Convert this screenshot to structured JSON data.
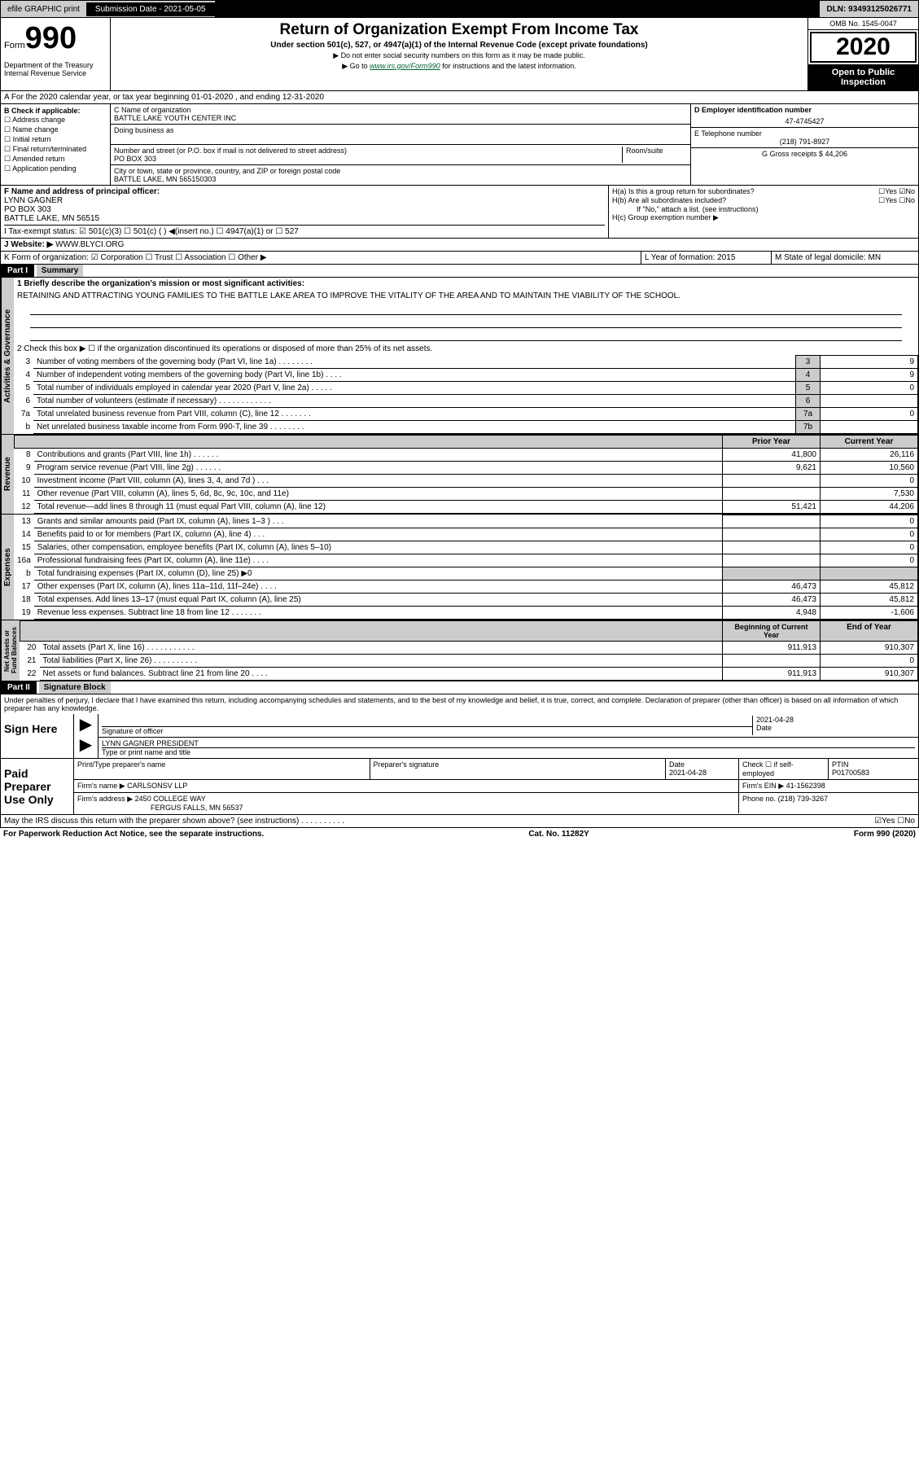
{
  "topbar": {
    "efile": "efile GRAPHIC print",
    "sub_label": "Submission Date - 2021-05-05",
    "dln": "DLN: 93493125026771"
  },
  "header": {
    "form_word": "Form",
    "form_num": "990",
    "dept": "Department of the Treasury\nInternal Revenue Service",
    "title": "Return of Organization Exempt From Income Tax",
    "subtitle": "Under section 501(c), 527, or 4947(a)(1) of the Internal Revenue Code (except private foundations)",
    "note1": "▶ Do not enter social security numbers on this form as it may be made public.",
    "note2_pre": "▶ Go to ",
    "note2_link": "www.irs.gov/Form990",
    "note2_post": " for instructions and the latest information.",
    "omb": "OMB No. 1545-0047",
    "year": "2020",
    "inspect": "Open to Public Inspection"
  },
  "line_a": "A For the 2020 calendar year, or tax year beginning 01-01-2020   , and ending 12-31-2020",
  "box_b": {
    "label": "B Check if applicable:",
    "items": [
      "☐ Address change",
      "☐ Name change",
      "☐ Initial return",
      "☐ Final return/terminated",
      "☐ Amended return",
      "☐ Application pending"
    ]
  },
  "box_c": {
    "name_label": "C Name of organization",
    "name": "BATTLE LAKE YOUTH CENTER INC",
    "dba_label": "Doing business as",
    "addr_label": "Number and street (or P.O. box if mail is not delivered to street address)",
    "room_label": "Room/suite",
    "addr": "PO BOX 303",
    "city_label": "City or town, state or province, country, and ZIP or foreign postal code",
    "city": "BATTLE LAKE, MN  565150303"
  },
  "box_d": {
    "label": "D Employer identification number",
    "value": "47-4745427"
  },
  "box_e": {
    "label": "E Telephone number",
    "value": "(218) 791-8927"
  },
  "box_g": {
    "label": "G Gross receipts $ 44,206"
  },
  "box_f": {
    "label": "F Name and address of principal officer:",
    "name": "LYNN GAGNER",
    "addr1": "PO BOX 303",
    "addr2": "BATTLE LAKE, MN  56515"
  },
  "box_h": {
    "a": "H(a)  Is this a group return for subordinates?",
    "a_ans": "☐Yes ☑No",
    "b": "H(b)  Are all subordinates included?",
    "b_ans": "☐Yes ☐No",
    "b_note": "If \"No,\" attach a list. (see instructions)",
    "c": "H(c)  Group exemption number ▶"
  },
  "box_i": "I  Tax-exempt status:   ☑ 501(c)(3)   ☐ 501(c) (  ) ◀(insert no.)   ☐ 4947(a)(1) or   ☐ 527",
  "box_j_label": "J  Website: ▶",
  "box_j_val": "WWW.BLYCI.ORG",
  "box_k": "K Form of organization:  ☑ Corporation  ☐ Trust  ☐ Association  ☐ Other ▶",
  "box_l": "L Year of formation: 2015",
  "box_m": "M State of legal domicile: MN",
  "part1": {
    "hdr": "Part I",
    "title": "Summary",
    "q1": "1  Briefly describe the organization's mission or most significant activities:",
    "mission": "RETAINING AND ATTRACTING YOUNG FAMILIES TO THE BATTLE LAKE AREA TO IMPROVE THE VITALITY OF THE AREA AND TO MAINTAIN THE VIABILITY OF THE SCHOOL.",
    "q2": "2  Check this box ▶ ☐  if the organization discontinued its operations or disposed of more than 25% of its net assets.",
    "rows_ag": [
      {
        "n": "3",
        "label": "Number of voting members of the governing body (Part VI, line 1a)  .  .  .  .  .  .  .  .",
        "box": "3",
        "val": "9"
      },
      {
        "n": "4",
        "label": "Number of independent voting members of the governing body (Part VI, line 1b)  .  .  .  .",
        "box": "4",
        "val": "9"
      },
      {
        "n": "5",
        "label": "Total number of individuals employed in calendar year 2020 (Part V, line 2a)  .  .  .  .  .",
        "box": "5",
        "val": "0"
      },
      {
        "n": "6",
        "label": "Total number of volunteers (estimate if necessary)  .  .  .  .  .  .  .  .  .  .  .  .",
        "box": "6",
        "val": ""
      },
      {
        "n": "7a",
        "label": "Total unrelated business revenue from Part VIII, column (C), line 12  .  .  .  .  .  .  .",
        "box": "7a",
        "val": "0"
      },
      {
        "n": "b",
        "label": "Net unrelated business taxable income from Form 990-T, line 39  .  .  .  .  .  .  .  .",
        "box": "7b",
        "val": ""
      }
    ],
    "py_hdr": "Prior Year",
    "cy_hdr": "Current Year",
    "rows_rev": [
      {
        "n": "8",
        "label": "Contributions and grants (Part VIII, line 1h)  .  .  .  .  .  .",
        "py": "41,800",
        "cy": "26,116"
      },
      {
        "n": "9",
        "label": "Program service revenue (Part VIII, line 2g)  .  .  .  .  .  .",
        "py": "9,621",
        "cy": "10,560"
      },
      {
        "n": "10",
        "label": "Investment income (Part VIII, column (A), lines 3, 4, and 7d )  .  .  .",
        "py": "",
        "cy": "0"
      },
      {
        "n": "11",
        "label": "Other revenue (Part VIII, column (A), lines 5, 6d, 8c, 9c, 10c, and 11e)",
        "py": "",
        "cy": "7,530"
      },
      {
        "n": "12",
        "label": "Total revenue—add lines 8 through 11 (must equal Part VIII, column (A), line 12)",
        "py": "51,421",
        "cy": "44,206"
      }
    ],
    "rows_exp": [
      {
        "n": "13",
        "label": "Grants and similar amounts paid (Part IX, column (A), lines 1–3 )  .  .  .",
        "py": "",
        "cy": "0"
      },
      {
        "n": "14",
        "label": "Benefits paid to or for members (Part IX, column (A), line 4)  .  .  .",
        "py": "",
        "cy": "0"
      },
      {
        "n": "15",
        "label": "Salaries, other compensation, employee benefits (Part IX, column (A), lines 5–10)",
        "py": "",
        "cy": "0"
      },
      {
        "n": "16a",
        "label": "Professional fundraising fees (Part IX, column (A), line 11e)  .  .  .  .",
        "py": "",
        "cy": "0"
      },
      {
        "n": "b",
        "label": "Total fundraising expenses (Part IX, column (D), line 25) ▶0",
        "py": "gray",
        "cy": "gray"
      },
      {
        "n": "17",
        "label": "Other expenses (Part IX, column (A), lines 11a–11d, 11f–24e)  .  .  .  .",
        "py": "46,473",
        "cy": "45,812"
      },
      {
        "n": "18",
        "label": "Total expenses. Add lines 13–17 (must equal Part IX, column (A), line 25)",
        "py": "46,473",
        "cy": "45,812"
      },
      {
        "n": "19",
        "label": "Revenue less expenses. Subtract line 18 from line 12  .  .  .  .  .  .  .",
        "py": "4,948",
        "cy": "-1,606"
      }
    ],
    "na_hdr1": "Beginning of Current Year",
    "na_hdr2": "End of Year",
    "rows_na": [
      {
        "n": "20",
        "label": "Total assets (Part X, line 16)  .  .  .  .  .  .  .  .  .  .  .",
        "py": "911,913",
        "cy": "910,307"
      },
      {
        "n": "21",
        "label": "Total liabilities (Part X, line 26)  .  .  .  .  .  .  .  .  .  .",
        "py": "",
        "cy": "0"
      },
      {
        "n": "22",
        "label": "Net assets or fund balances. Subtract line 21 from line 20  .  .  .  .",
        "py": "911,913",
        "cy": "910,307"
      }
    ],
    "vtabs": {
      "ag": "Activities & Governance",
      "rev": "Revenue",
      "exp": "Expenses",
      "na": "Net Assets or\nFund Balances"
    }
  },
  "part2": {
    "hdr": "Part II",
    "title": "Signature Block",
    "decl": "Under penalties of perjury, I declare that I have examined this return, including accompanying schedules and statements, and to the best of my knowledge and belief, it is true, correct, and complete. Declaration of preparer (other than officer) is based on all information of which preparer has any knowledge.",
    "sign_here": "Sign Here",
    "sig_officer": "Signature of officer",
    "sig_date": "2021-04-28",
    "date_label": "Date",
    "sig_name": "LYNN GAGNER PRESIDENT",
    "sig_name_label": "Type or print name and title",
    "paid": "Paid Preparer Use Only",
    "prep_name_label": "Print/Type preparer's name",
    "prep_sig_label": "Preparer's signature",
    "prep_date_label": "Date",
    "prep_date": "2021-04-28",
    "prep_check": "Check ☐ if self-employed",
    "ptin_label": "PTIN",
    "ptin": "P01700583",
    "firm_name_label": "Firm's name    ▶",
    "firm_name": "CARLSONSV LLP",
    "firm_ein_label": "Firm's EIN ▶",
    "firm_ein": "41-1562398",
    "firm_addr_label": "Firm's address ▶",
    "firm_addr1": "2450 COLLEGE WAY",
    "firm_addr2": "FERGUS FALLS, MN  56537",
    "phone_label": "Phone no.",
    "phone": "(218) 739-3267",
    "discuss": "May the IRS discuss this return with the preparer shown above? (see instructions)  .  .  .  .  .  .  .  .  .  .",
    "discuss_ans": "☑Yes  ☐No"
  },
  "footer": {
    "left": "For Paperwork Reduction Act Notice, see the separate instructions.",
    "mid": "Cat. No. 11282Y",
    "right": "Form 990 (2020)"
  }
}
